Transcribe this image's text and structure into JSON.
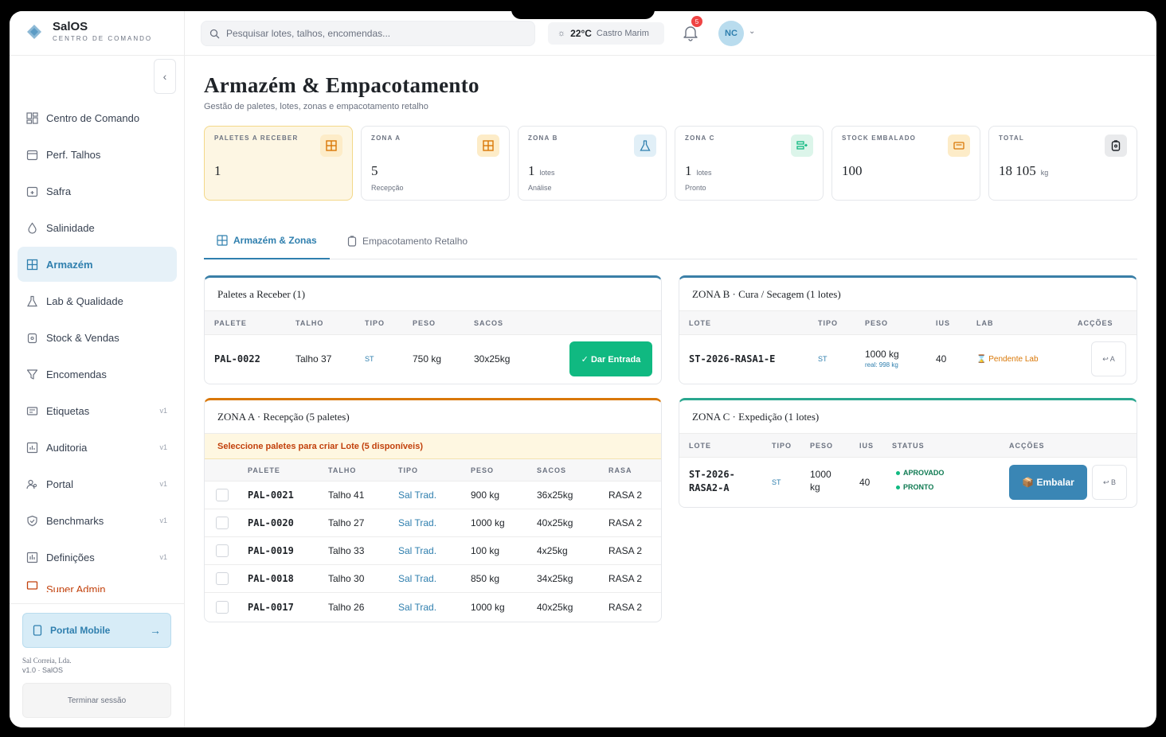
{
  "brand": {
    "name": "SalOS",
    "subtitle": "CENTRO DE COMANDO"
  },
  "sidebar": {
    "items": [
      {
        "label": "Centro de Comando",
        "icon": "dashboard-icon"
      },
      {
        "label": "Perf. Talhos",
        "icon": "calendar-icon"
      },
      {
        "label": "Safra",
        "icon": "calendar-plus-icon"
      },
      {
        "label": "Salinidade",
        "icon": "droplet-icon"
      },
      {
        "label": "Armazém",
        "icon": "warehouse-icon",
        "active": true
      },
      {
        "label": "Lab & Qualidade",
        "icon": "flask-icon"
      },
      {
        "label": "Stock & Vendas",
        "icon": "package-icon"
      },
      {
        "label": "Encomendas",
        "icon": "filter-icon"
      },
      {
        "label": "Etiquetas",
        "icon": "label-icon",
        "version": "v1"
      },
      {
        "label": "Auditoria",
        "icon": "chart-icon",
        "version": "v1"
      },
      {
        "label": "Portal",
        "icon": "users-icon",
        "version": "v1"
      },
      {
        "label": "Benchmarks",
        "icon": "shield-icon",
        "version": "v1"
      },
      {
        "label": "Definições",
        "icon": "settings-icon",
        "version": "v1"
      }
    ],
    "admin_label": "Super Admin",
    "portal_mobile": "Portal Mobile",
    "company": "Sal Correia, Lda.",
    "version": "v1.0 · SalOS",
    "logout": "Terminar sessão"
  },
  "header": {
    "search_placeholder": "Pesquisar lotes, talhos, encomendas...",
    "temperature": "22°C",
    "location": "Castro Marim",
    "notifications": "5",
    "avatar": "NC"
  },
  "page": {
    "title": "Armazém & Empacotamento",
    "subtitle": "Gestão de paletes, lotes, zonas e empacotamento retalho"
  },
  "kpis": [
    {
      "label": "PALETES A RECEBER",
      "value": "1",
      "unit": "",
      "sub": "",
      "color": "#d97706",
      "bg": "#fdecc8"
    },
    {
      "label": "ZONA A",
      "value": "5",
      "unit": "",
      "sub": "Recepção",
      "color": "#d97706",
      "bg": "#fdecc8"
    },
    {
      "label": "ZONA B",
      "value": "1",
      "unit": "lotes",
      "sub": "Análise",
      "color": "#2f7fae",
      "bg": "#e1eff7"
    },
    {
      "label": "ZONA C",
      "value": "1",
      "unit": "lotes",
      "sub": "Pronto",
      "color": "#10b981",
      "bg": "#dcf5ea"
    },
    {
      "label": "STOCK EMBALADO",
      "value": "100",
      "unit": "",
      "sub": "",
      "color": "#d97706",
      "bg": "#fdecc8"
    },
    {
      "label": "TOTAL",
      "value": "18 105",
      "unit": "kg",
      "sub": "",
      "color": "#1f2328",
      "bg": "#e9eaec"
    }
  ],
  "tabs": [
    {
      "label": "Armazém & Zonas"
    },
    {
      "label": "Empacotamento Retalho"
    }
  ],
  "receber": {
    "title": "Paletes a Receber (1)",
    "headers": [
      "PALETE",
      "TALHO",
      "TIPO",
      "PESO",
      "SACOS"
    ],
    "rows": [
      {
        "palete": "PAL-0022",
        "talho": "Talho 37",
        "tipo": "ST",
        "peso": "750 kg",
        "sacos": "30x25kg",
        "action": "✓ Dar Entrada"
      }
    ]
  },
  "zona_a": {
    "title": "ZONA A · Recepção (5 paletes)",
    "notice": "Seleccione paletes para criar Lote (5 disponíveis)",
    "headers": [
      "PALETE",
      "TALHO",
      "TIPO",
      "PESO",
      "SACOS",
      "RASA"
    ],
    "rows": [
      {
        "palete": "PAL-0021",
        "talho": "Talho 41",
        "tipo": "Sal Trad.",
        "peso": "900 kg",
        "sacos": "36x25kg",
        "rasa": "RASA 2"
      },
      {
        "palete": "PAL-0020",
        "talho": "Talho 27",
        "tipo": "Sal Trad.",
        "peso": "1000 kg",
        "sacos": "40x25kg",
        "rasa": "RASA 2"
      },
      {
        "palete": "PAL-0019",
        "talho": "Talho 33",
        "tipo": "Sal Trad.",
        "peso": "100 kg",
        "sacos": "4x25kg",
        "rasa": "RASA 2"
      },
      {
        "palete": "PAL-0018",
        "talho": "Talho 30",
        "tipo": "Sal Trad.",
        "peso": "850 kg",
        "sacos": "34x25kg",
        "rasa": "RASA 2"
      },
      {
        "palete": "PAL-0017",
        "talho": "Talho 26",
        "tipo": "Sal Trad.",
        "peso": "1000 kg",
        "sacos": "40x25kg",
        "rasa": "RASA 2"
      }
    ]
  },
  "zona_b": {
    "title": "ZONA B · Cura / Secagem (1 lotes)",
    "headers": [
      "LOTE",
      "TIPO",
      "PESO",
      "IUS",
      "LAB",
      "ACÇÕES"
    ],
    "rows": [
      {
        "lote": "ST-2026-RASA1-E",
        "tipo": "ST",
        "peso": "1000 kg",
        "real": "real: 998 kg",
        "ius": "40",
        "lab": "Pendente Lab",
        "action": "↩ A"
      }
    ]
  },
  "zona_c": {
    "title": "ZONA C · Expedição (1 lotes)",
    "headers": [
      "LOTE",
      "TIPO",
      "PESO",
      "IUS",
      "STATUS",
      "ACÇÕES"
    ],
    "rows": [
      {
        "lote_1": "ST-2026-",
        "lote_2": "RASA2-A",
        "tipo": "ST",
        "peso_1": "1000",
        "peso_2": "kg",
        "ius": "40",
        "status_1": "APROVADO",
        "status_2": "PRONTO",
        "action": "📦 Embalar",
        "back": "↩ B"
      }
    ]
  }
}
